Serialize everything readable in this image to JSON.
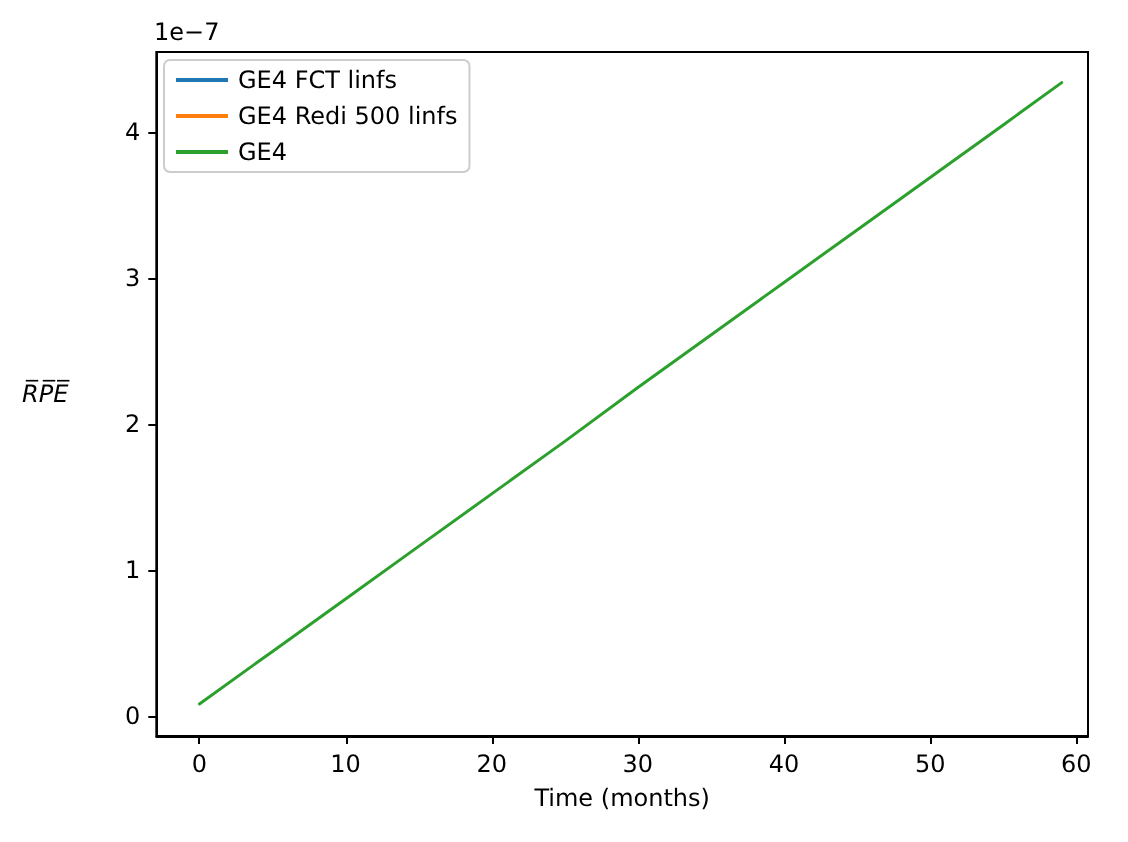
{
  "chart_data": {
    "type": "line",
    "xlabel": "Time (months)",
    "ylabel": "R̅P̅E̅",
    "annotations": [
      "1e−7"
    ],
    "x": [
      0,
      5,
      10,
      15,
      20,
      25,
      30,
      35,
      40,
      45,
      50,
      55,
      59
    ],
    "series": [
      {
        "name": "GE4 FCT linfs",
        "color": "#1f77b4",
        "values": [
          null,
          null,
          null,
          null,
          null,
          null,
          null,
          null,
          null,
          null,
          null,
          null,
          null
        ]
      },
      {
        "name": "GE4 Redi 500 linfs",
        "color": "#ff7f0e",
        "values": [
          null,
          null,
          null,
          null,
          null,
          null,
          null,
          null,
          null,
          null,
          null,
          null,
          null
        ]
      },
      {
        "name": "GE4",
        "color": "#2ca02c",
        "values": [
          0.08,
          0.44,
          0.8,
          1.16,
          1.52,
          1.88,
          2.25,
          2.61,
          2.97,
          3.33,
          3.69,
          4.05,
          4.34
        ]
      }
    ],
    "xlim": [
      -2.95,
      60.8
    ],
    "xticks": [
      0,
      10,
      20,
      30,
      40,
      50,
      60
    ],
    "ylim": [
      -0.14,
      4.55
    ],
    "yticks": [
      0,
      1,
      2,
      3,
      4
    ],
    "grid": false,
    "legend": "top left",
    "marker": "none",
    "line_style": "solid"
  }
}
